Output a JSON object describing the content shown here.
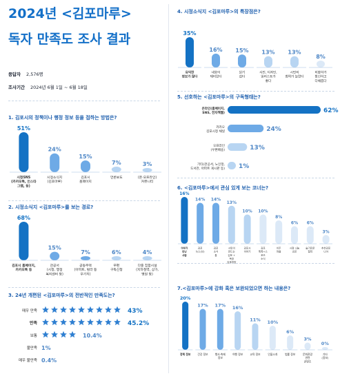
{
  "header": {
    "title_line1": "2024년 <김포마루>",
    "title_line2": "독자 만족도 조사 결과",
    "respondents_label": "응답자",
    "respondents_value": "2,576명",
    "period_label": "조사기간",
    "period_value": "2024년 6월 1일 ~ 6월 18일"
  },
  "colors": {
    "dark": "#1472c4",
    "mid": "#6eaae6",
    "light": "#b8d5f2",
    "faint": "#dce9f7",
    "star_on": "#2f7fd1",
    "star_off": "#c9ddf2"
  },
  "chart_data": [
    {
      "id": "q1",
      "type": "bar",
      "title": "1. 김포시의 정책이나 행정 정보 등을 접하는 방법은?",
      "categories": [
        "시청SNS\n(카카오톡, 인스타\n그램, 등)",
        "시정소식지\n(김포마루)",
        "김포시\n홈페이지",
        "언론보도",
        "(온·오프라인)\n커뮤니티"
      ],
      "values": [
        51,
        24,
        15,
        7,
        3
      ],
      "labels": [
        "51%",
        "24%",
        "15%",
        "7%",
        "3%"
      ]
    },
    {
      "id": "q2",
      "type": "bar",
      "title": "2. 시정소식지 <김포마루>를 보는 경로?",
      "categories": [
        "김포시 홈페이지,\n카카오톡 등",
        "관공서\n(시청, 행정\n복지센터 등)",
        "공동주택\n(아파트, 빌라 등\n우기치)",
        "우편\n구독신청",
        "다중 집합시설\n(지하철역, 상가,\n병원 등)"
      ],
      "values": [
        68,
        15,
        7,
        6,
        4
      ],
      "labels": [
        "68%",
        "15%",
        "7%",
        "6%",
        "4%"
      ]
    },
    {
      "id": "q3",
      "type": "bar",
      "title": "3. 24년 개편된 <김포마루>의 전반적인 만족도는?",
      "categories": [
        "매우 만족",
        "만족",
        "보통",
        "불만족",
        "매우 불만족"
      ],
      "values": [
        43,
        45.2,
        10.4,
        1,
        0.4
      ],
      "labels": [
        "43%",
        "45.2%",
        "10.4%",
        "1%",
        "0.4%"
      ],
      "stars": [
        9,
        9,
        4,
        0,
        0
      ]
    },
    {
      "id": "q4",
      "type": "bar",
      "title": "4. 시정소식지 <김포마루>의 특장점은?",
      "categories": [
        "유익한\n정보가 많다",
        "내용이\n재미있다",
        "읽기\n쉽다",
        "사진, 디자인,\n일러스트가\n좋다",
        "시민의\n참여가 늘었다",
        "미봤하가\n참신하고\n다채롭다"
      ],
      "values": [
        35,
        16,
        15,
        13,
        13,
        8
      ],
      "labels": [
        "35%",
        "16%",
        "15%",
        "13%",
        "13%",
        "8%"
      ]
    },
    {
      "id": "q5",
      "type": "bar",
      "title": "5. 선호하는 <김포마루>의 구독형태는?",
      "categories": [
        "온라인(홈페이지,\nSNS, 전자책웹)",
        "카카오\n김포시정 채널",
        "오프라인\n(우편배송)",
        "기타(관공서, 노인정,\n도서관, 아파트 게시판 등)"
      ],
      "values": [
        62,
        24,
        13,
        1
      ],
      "labels": [
        "62%",
        "24%",
        "13%",
        "1%"
      ]
    },
    {
      "id": "q6",
      "type": "bar",
      "title": "6. <김포마루>에서 관심 있게 보는 코너는?",
      "categories": [
        "아무가\n만난\n사람",
        "김포\n뉴스(브)",
        "김포\n소식\n통",
        "시민이\n만드는\n김포 +\n독창\n김포한방",
        "김포시\n이야기",
        "김포\n톡톡+스\n포츠\n소식",
        "이주\n마을",
        "시정 나눔\n김포",
        "슬기로운\n협력",
        "추천김포\n니아"
      ],
      "values": [
        16,
        14,
        14,
        13,
        10,
        10,
        8,
        6,
        6,
        3
      ],
      "labels": [
        "16%",
        "14%",
        "14%",
        "13%",
        "10%",
        "10%",
        "8%",
        "6%",
        "6%",
        "3%"
      ]
    },
    {
      "id": "q7",
      "type": "bar",
      "title": "7.<김포마루>에 강화 혹은 보완되었으면 하는 내용은?",
      "categories": [
        "정책 정보",
        "건강 정보",
        "행사·축제\n정보",
        "여행 정보",
        "교육 정보",
        "인물소개",
        "법률 정보",
        "문화관광\n관련\n콘텐츠",
        "기타\n(정보)"
      ],
      "values": [
        20,
        17,
        17,
        16,
        11,
        10,
        6,
        3,
        0
      ],
      "labels": [
        "20%",
        "17%",
        "17%",
        "16%",
        "11%",
        "10%",
        "6%",
        "3%",
        "0%"
      ]
    }
  ]
}
